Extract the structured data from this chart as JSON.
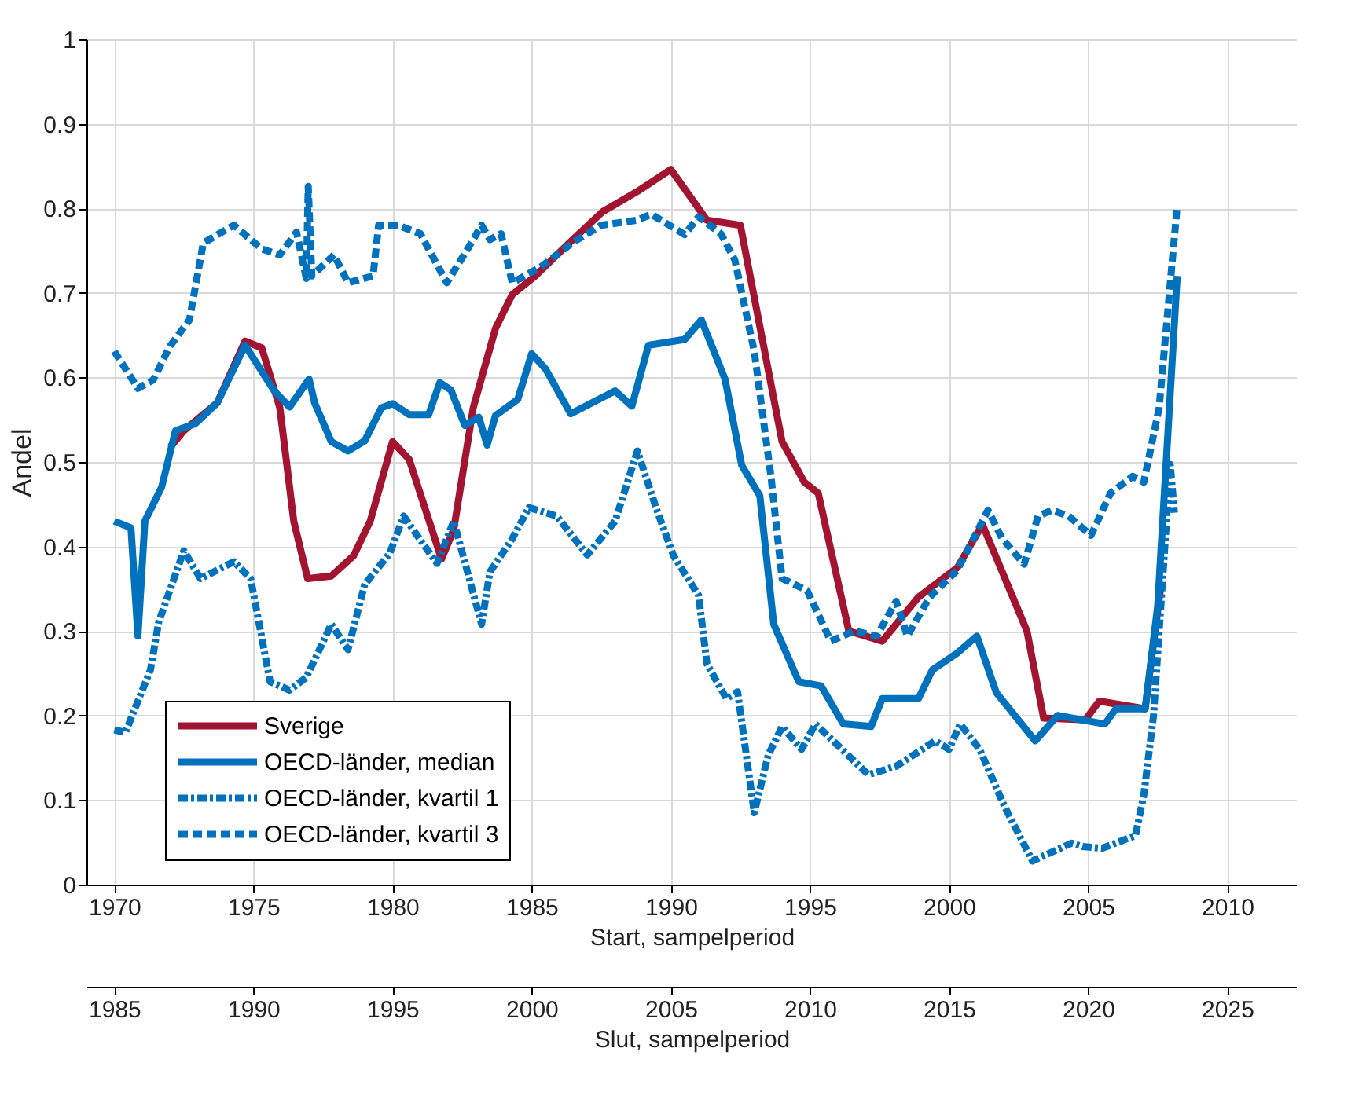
{
  "chart_data": {
    "type": "line",
    "ylabel": "Andel",
    "xlabel": "Start, sampelperiod",
    "x2label": "Slut, sampelperiod",
    "xlim": [
      1969,
      2012.5
    ],
    "xticks": [
      1970,
      1975,
      1980,
      1985,
      1990,
      1995,
      2000,
      2005,
      2010
    ],
    "x2lim": [
      1984,
      2027.5
    ],
    "x2ticks": [
      1985,
      1990,
      1995,
      2000,
      2005,
      2010,
      2015,
      2020,
      2025
    ],
    "ylim": [
      0,
      1
    ],
    "yticks": [
      0,
      0.1,
      0.2,
      0.3,
      0.4,
      0.5,
      0.6,
      0.7,
      0.8,
      0.9,
      1
    ],
    "grid": true,
    "legend": "bottom left",
    "series": [
      {
        "name": "Sverige",
        "color": "#a2142f",
        "line_style": "solid",
        "x": [
          1972.0,
          1972.5,
          1973.7,
          1974.7,
          1975.3,
          1975.95,
          1976.45,
          1976.95,
          1977.8,
          1978.6,
          1979.2,
          1980.0,
          1980.6,
          1981.76,
          1982.2,
          1982.9,
          1983.7,
          1984.3,
          1985.1,
          1986.35,
          1987.55,
          1988.8,
          1990.0,
          1991.3,
          1992.5,
          1994.0,
          1994.8,
          1995.3,
          1996.4,
          1997.6,
          1998.9,
          2000.3,
          2001.2,
          2002.8,
          2003.4,
          2004.9,
          2005.4,
          2007.05,
          2007.6
        ],
        "values": [
          0.517,
          0.537,
          0.57,
          0.643,
          0.635,
          0.564,
          0.43,
          0.362,
          0.365,
          0.389,
          0.43,
          0.524,
          0.503,
          0.385,
          0.42,
          0.564,
          0.658,
          0.698,
          0.719,
          0.759,
          0.796,
          0.82,
          0.846,
          0.786,
          0.78,
          0.524,
          0.476,
          0.463,
          0.3,
          0.288,
          0.34,
          0.375,
          0.426,
          0.3,
          0.197,
          0.195,
          0.217,
          0.208,
          0.35
        ]
      },
      {
        "name": "OECD-länder, median",
        "color": "#0072bd",
        "line_style": "solid",
        "x": [
          1970.0,
          1970.6,
          1970.85,
          1971.1,
          1971.7,
          1972.2,
          1972.9,
          1973.7,
          1974.7,
          1975.75,
          1976.3,
          1977.0,
          1977.2,
          1977.8,
          1978.4,
          1979.0,
          1979.6,
          1980.0,
          1980.6,
          1981.3,
          1981.7,
          1982.1,
          1982.6,
          1983.1,
          1983.4,
          1983.7,
          1984.5,
          1985.0,
          1985.5,
          1986.4,
          1988.0,
          1988.6,
          1989.2,
          1990.5,
          1991.1,
          1991.95,
          1992.55,
          1993.2,
          1993.7,
          1994.6,
          1995.4,
          1996.2,
          1997.2,
          1997.6,
          1998.9,
          1999.4,
          2000.3,
          2001.0,
          2001.7,
          2003.1,
          2003.9,
          2005.6,
          2006.0,
          2007.05,
          2007.5,
          2008.2
        ],
        "values": [
          0.43,
          0.422,
          0.294,
          0.43,
          0.47,
          0.537,
          0.545,
          0.57,
          0.638,
          0.584,
          0.565,
          0.598,
          0.57,
          0.524,
          0.513,
          0.525,
          0.564,
          0.569,
          0.556,
          0.556,
          0.594,
          0.585,
          0.543,
          0.553,
          0.52,
          0.555,
          0.574,
          0.628,
          0.61,
          0.557,
          0.584,
          0.566,
          0.638,
          0.645,
          0.668,
          0.598,
          0.496,
          0.46,
          0.308,
          0.24,
          0.235,
          0.19,
          0.187,
          0.22,
          0.22,
          0.254,
          0.274,
          0.294,
          0.227,
          0.17,
          0.2,
          0.19,
          0.208,
          0.208,
          0.33,
          0.72
        ]
      },
      {
        "name": "OECD-länder, kvartil 1",
        "color": "#0072bd",
        "line_style": "dotted",
        "x": [
          1970.0,
          1970.4,
          1971.3,
          1971.6,
          1972.5,
          1973.1,
          1974.3,
          1974.9,
          1975.6,
          1976.3,
          1976.9,
          1977.8,
          1978.4,
          1979.0,
          1979.9,
          1980.4,
          1981.1,
          1981.6,
          1982.2,
          1983.2,
          1983.5,
          1984.3,
          1984.9,
          1985.9,
          1987.0,
          1988.0,
          1988.8,
          1989.5,
          1990.1,
          1991.0,
          1991.3,
          1992.0,
          1992.4,
          1993.0,
          1993.5,
          1994.0,
          1994.7,
          1995.2,
          1997.1,
          1998.1,
          1999.5,
          2000.0,
          2000.4,
          2001.1,
          2002.0,
          2003.0,
          2004.4,
          2004.8,
          2005.5,
          2006.7,
          2007.0,
          2007.35,
          2007.95,
          2008.1
        ],
        "values": [
          0.183,
          0.18,
          0.254,
          0.311,
          0.395,
          0.362,
          0.382,
          0.362,
          0.24,
          0.23,
          0.245,
          0.308,
          0.278,
          0.355,
          0.392,
          0.436,
          0.403,
          0.38,
          0.43,
          0.308,
          0.37,
          0.409,
          0.446,
          0.436,
          0.39,
          0.43,
          0.513,
          0.443,
          0.389,
          0.342,
          0.261,
          0.22,
          0.228,
          0.085,
          0.153,
          0.187,
          0.16,
          0.19,
          0.13,
          0.14,
          0.17,
          0.16,
          0.19,
          0.16,
          0.092,
          0.028,
          0.049,
          0.045,
          0.043,
          0.058,
          0.106,
          0.2,
          0.497,
          0.44
        ]
      },
      {
        "name": "OECD-länder, kvartil 3",
        "color": "#0072bd",
        "line_style": "dashed",
        "x": [
          1970.0,
          1970.85,
          1971.4,
          1972.0,
          1972.7,
          1973.2,
          1974.3,
          1975.3,
          1975.95,
          1976.55,
          1976.9,
          1976.97,
          1977.1,
          1977.9,
          1978.4,
          1979.3,
          1979.5,
          1980.2,
          1981.0,
          1981.95,
          1982.7,
          1983.2,
          1983.5,
          1983.9,
          1984.3,
          1985.3,
          1986.5,
          1987.5,
          1988.8,
          1989.3,
          1990.5,
          1991.0,
          1991.8,
          1992.3,
          1993.0,
          1993.6,
          1994.0,
          1994.9,
          1995.75,
          1996.6,
          1997.4,
          1998.1,
          1998.5,
          1999.3,
          2000.3,
          2001.4,
          2001.9,
          2002.7,
          2003.2,
          2003.7,
          2004.3,
          2005.1,
          2005.8,
          2006.6,
          2007.0,
          2007.55,
          2008.2
        ],
        "values": [
          0.631,
          0.587,
          0.597,
          0.637,
          0.668,
          0.759,
          0.78,
          0.752,
          0.745,
          0.772,
          0.717,
          0.826,
          0.72,
          0.745,
          0.712,
          0.72,
          0.78,
          0.78,
          0.77,
          0.712,
          0.752,
          0.78,
          0.763,
          0.77,
          0.712,
          0.73,
          0.76,
          0.78,
          0.786,
          0.793,
          0.769,
          0.79,
          0.77,
          0.739,
          0.631,
          0.483,
          0.362,
          0.348,
          0.288,
          0.3,
          0.294,
          0.335,
          0.294,
          0.34,
          0.372,
          0.443,
          0.41,
          0.379,
          0.436,
          0.443,
          0.436,
          0.413,
          0.463,
          0.483,
          0.476,
          0.564,
          0.803
        ]
      }
    ]
  }
}
